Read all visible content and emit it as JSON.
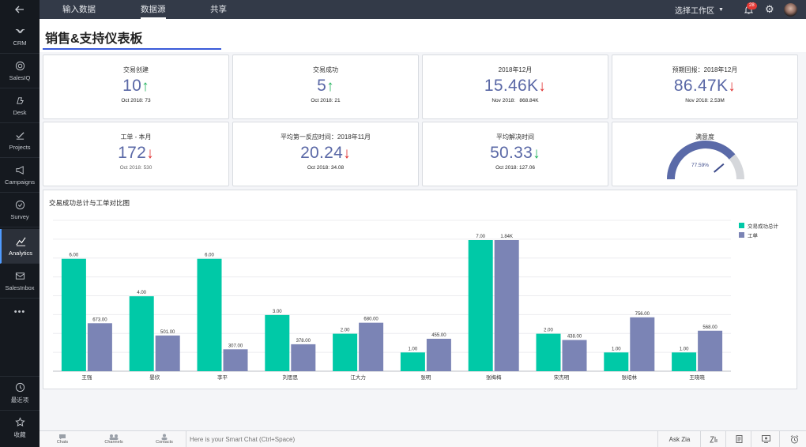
{
  "sidebar": {
    "items": [
      {
        "label": "CRM",
        "icon": "handshake-icon"
      },
      {
        "label": "SalesIQ",
        "icon": "target-icon"
      },
      {
        "label": "Desk",
        "icon": "desk-icon"
      },
      {
        "label": "Projects",
        "icon": "checklist-icon"
      },
      {
        "label": "Campaigns",
        "icon": "megaphone-icon"
      },
      {
        "label": "Survey",
        "icon": "check-circle-icon"
      },
      {
        "label": "Analytics",
        "icon": "analytics-icon"
      },
      {
        "label": "SalesInbox",
        "icon": "inbox-icon"
      }
    ],
    "more": "•••",
    "recent": {
      "label": "最近项",
      "icon": "clock-icon"
    },
    "favorites": {
      "label": "收藏",
      "icon": "star-icon"
    },
    "active_item": "Analytics",
    "accent": "#4f9bff"
  },
  "topnav": {
    "tabs": [
      "输入数据",
      "数据源",
      "共享"
    ],
    "active_tab": "数据源",
    "workspace": "选择工作区",
    "notification_count": "28"
  },
  "dashboard": {
    "title": "销售&支持仪表板"
  },
  "kpis": [
    {
      "title": "交易创建",
      "value": "10",
      "trend": "up",
      "sub": "Oct 2018: 73"
    },
    {
      "title": "交易成功",
      "value": "5",
      "trend": "up",
      "sub": "Oct 2018: 21"
    },
    {
      "title": "2018年12月",
      "value": "15.46K",
      "trend": "down",
      "sub": "Nov 2018:   868.84K"
    },
    {
      "title": "预期回报：2018年12月",
      "value": "86.47K",
      "trend": "down",
      "sub": "Nov 2018: 2.53M"
    },
    {
      "title": "工单 - 本月",
      "value": "172",
      "trend": "down",
      "sub": "Oct 2018: 530"
    },
    {
      "title": "平均第一反应时间：2018年11月",
      "value": "20.24",
      "trend": "down",
      "sub": "Oct 2018: 34.08"
    },
    {
      "title": "平均解决时间",
      "value": "50.33",
      "trend": "down",
      "sub": "Oct 2018: 127.06"
    }
  ],
  "gauge": {
    "title": "满意度",
    "value": 77.59,
    "label": "77.59%",
    "color": "#5a6aa8"
  },
  "chart_data": {
    "type": "bar",
    "title": "交易成功总计与工单对比图",
    "categories": [
      "王强",
      "晏欣",
      "李平",
      "刘思思",
      "江大力",
      "张明",
      "张梅梅",
      "宋杰明",
      "张绍林",
      "王晓晓"
    ],
    "series": [
      {
        "name": "交易成功总计",
        "color": "#00c9a7",
        "values": [
          6,
          4,
          6,
          3,
          2,
          1,
          7,
          2,
          1,
          1
        ],
        "labels": [
          "6.00",
          "4.00",
          "6.00",
          "3.00",
          "2.00",
          "1.00",
          "7.00",
          "2.00",
          "1.00",
          "1.00"
        ]
      },
      {
        "name": "工单",
        "color": "#7b84b5",
        "values": [
          673,
          501,
          307,
          378,
          680,
          455,
          1840,
          438,
          756,
          568
        ],
        "labels": [
          "673.00",
          "501.00",
          "307.00",
          "378.00",
          "680.00",
          "455.00",
          "1.84K",
          "438.00",
          "756.00",
          "568.00"
        ]
      }
    ],
    "legend_position": "top-right",
    "grid": true
  },
  "bottombar": {
    "items": [
      "Chats",
      "Channels",
      "Contacts"
    ],
    "placeholder": "Here is your Smart Chat (Ctrl+Space)",
    "ask_zia": "Ask Zia"
  }
}
